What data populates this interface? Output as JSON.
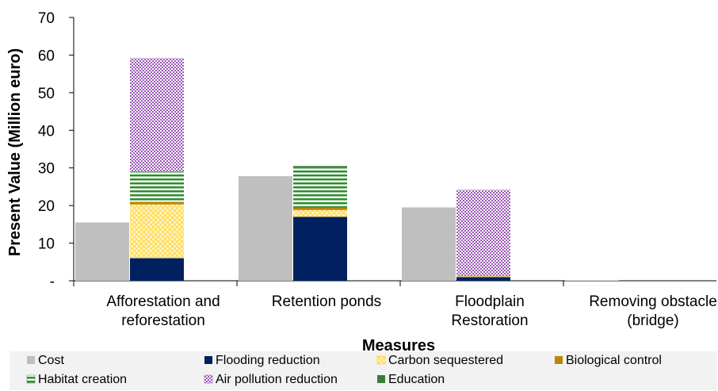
{
  "chart_data": {
    "type": "bar",
    "stacked": true,
    "xlabel": "Measures",
    "ylabel": "Present Value (Million euro)",
    "ylim": [
      0,
      70
    ],
    "yticks": [
      {
        "value": 0,
        "label": "-"
      },
      {
        "value": 10,
        "label": "10"
      },
      {
        "value": 20,
        "label": "20"
      },
      {
        "value": 30,
        "label": "30"
      },
      {
        "value": 40,
        "label": "40"
      },
      {
        "value": 50,
        "label": "50"
      },
      {
        "value": 60,
        "label": "60"
      },
      {
        "value": 70,
        "label": "70"
      }
    ],
    "categories": [
      [
        "Afforestation and",
        "reforestation"
      ],
      [
        "Retention ponds"
      ],
      [
        "Floodplain",
        "Restoration"
      ],
      [
        "Removing obstacle",
        "(bridge)"
      ]
    ],
    "grid": false,
    "legend_position": "bottom",
    "cost": {
      "name": "Cost",
      "color": "#bfbfbf",
      "values": [
        15.5,
        27.8,
        19.5,
        0.1
      ]
    },
    "benefits": [
      {
        "name": "Flooding reduction",
        "color": "#002060",
        "pattern": "solid",
        "values": [
          6.0,
          17.0,
          1.0,
          0
        ]
      },
      {
        "name": "Carbon sequestered",
        "color": "#ffc000",
        "pattern": "dots",
        "values": [
          14.3,
          1.8,
          0.2,
          0
        ]
      },
      {
        "name": "Biological control",
        "color": "#b8860b",
        "pattern": "solid",
        "values": [
          0.7,
          0.7,
          0.2,
          0
        ]
      },
      {
        "name": "Habitat creation",
        "color": "#2e8b2e",
        "pattern": "hlines",
        "values": [
          8.0,
          10.5,
          0,
          0
        ]
      },
      {
        "name": "Air pollution reduction",
        "color": "#9b59b6",
        "pattern": "checker",
        "values": [
          30.2,
          0,
          22.8,
          0
        ]
      },
      {
        "name": "Education",
        "color": "#3a7d3a",
        "pattern": "solid",
        "values": [
          0,
          0.5,
          0,
          0
        ]
      }
    ]
  }
}
